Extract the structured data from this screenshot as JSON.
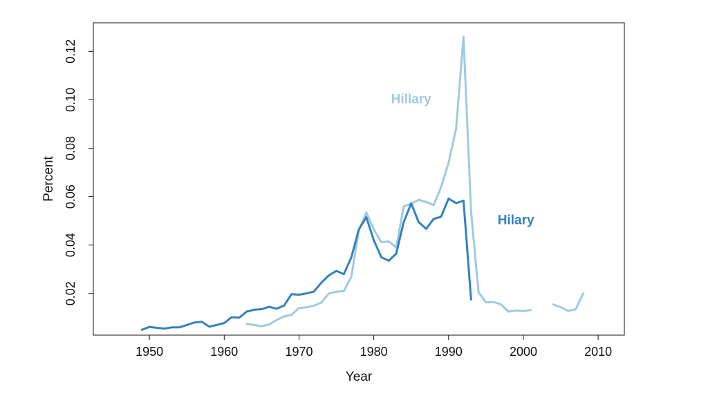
{
  "chart_data": {
    "type": "line",
    "xlabel": "Year",
    "ylabel": "Percent",
    "xlim": [
      1942.5,
      2013.5
    ],
    "ylim": [
      0.0028,
      0.1318
    ],
    "xticks": [
      1950,
      1960,
      1970,
      1980,
      1990,
      2000,
      2010
    ],
    "xtick_labels": [
      "1950",
      "1960",
      "1970",
      "1980",
      "1990",
      "2000",
      "2010"
    ],
    "yticks": [
      0.02,
      0.04,
      0.06,
      0.08,
      0.1,
      0.12
    ],
    "ytick_labels": [
      "0.02",
      "0.04",
      "0.06",
      "0.08",
      "0.10",
      "0.12"
    ],
    "series": [
      {
        "name": "Hillary",
        "color": "#9ecae1",
        "label_at": [
          1985.0,
          0.1
        ],
        "segments": [
          {
            "x": [
              1963,
              1964,
              1965,
              1966,
              1967,
              1968,
              1969,
              1970,
              1971,
              1972,
              1973,
              1974,
              1975,
              1976,
              1977,
              1978,
              1979,
              1980,
              1981,
              1982,
              1983,
              1984,
              1985,
              1986,
              1987,
              1988,
              1989,
              1990,
              1991,
              1992,
              1993,
              1994,
              1995,
              1996,
              1997,
              1998,
              1999,
              2000,
              2001
            ],
            "y": [
              0.0075,
              0.007,
              0.0065,
              0.0072,
              0.009,
              0.0105,
              0.0112,
              0.014,
              0.0143,
              0.015,
              0.0163,
              0.02,
              0.0207,
              0.021,
              0.027,
              0.046,
              0.0535,
              0.0465,
              0.0412,
              0.0415,
              0.039,
              0.056,
              0.057,
              0.0587,
              0.0578,
              0.0565,
              0.064,
              0.074,
              0.088,
              0.126,
              0.054,
              0.0205,
              0.0163,
              0.0165,
              0.0155,
              0.0125,
              0.013,
              0.0127,
              0.0132
            ]
          },
          {
            "x": [
              2004,
              2005,
              2006,
              2007,
              2008
            ],
            "y": [
              0.0155,
              0.0143,
              0.0128,
              0.0135,
              0.02
            ]
          }
        ]
      },
      {
        "name": "Hilary",
        "color": "#3182bd",
        "label_at": [
          1999.0,
          0.05
        ],
        "segments": [
          {
            "x": [
              1949,
              1950,
              1951,
              1952,
              1953,
              1954,
              1955,
              1956,
              1957,
              1958,
              1959,
              1960,
              1961,
              1962,
              1963,
              1964,
              1965,
              1966,
              1967,
              1968,
              1969,
              1970,
              1971,
              1972,
              1973,
              1974,
              1975,
              1976,
              1977,
              1978,
              1979,
              1980,
              1981,
              1982,
              1983,
              1984,
              1985,
              1986,
              1987,
              1988,
              1989,
              1990,
              1991,
              1992,
              1993
            ],
            "y": [
              0.005,
              0.0062,
              0.0058,
              0.0055,
              0.006,
              0.006,
              0.007,
              0.008,
              0.0083,
              0.0063,
              0.007,
              0.0078,
              0.0102,
              0.01,
              0.0125,
              0.0133,
              0.0135,
              0.0145,
              0.0137,
              0.015,
              0.0197,
              0.0195,
              0.02,
              0.0208,
              0.0245,
              0.0275,
              0.0293,
              0.028,
              0.035,
              0.0465,
              0.0515,
              0.042,
              0.035,
              0.0335,
              0.0365,
              0.0495,
              0.0572,
              0.0495,
              0.0467,
              0.0508,
              0.0517,
              0.0592,
              0.0573,
              0.0583,
              0.0175
            ]
          }
        ]
      }
    ]
  }
}
